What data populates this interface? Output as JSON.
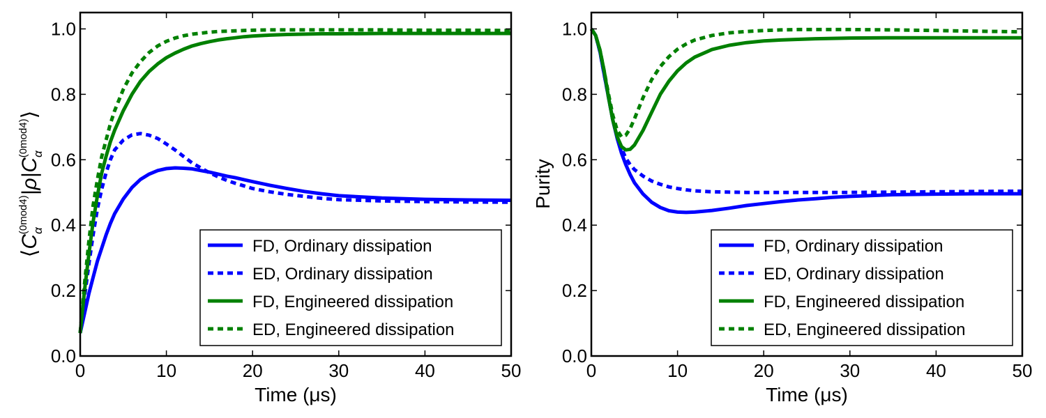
{
  "colors": {
    "blue": "#0000ff",
    "green": "#008000",
    "axis": "#000000",
    "background": "#ffffff"
  },
  "chart_data": [
    {
      "type": "line",
      "title": "",
      "xlabel": "Time (μs)",
      "ylabel_math": {
        "open": "⟨",
        "sym": "C",
        "sub": "α",
        "sup": "(0mod4)",
        "bar_rho": "|ρ|",
        "close": "⟩"
      },
      "xlim": [
        0,
        50
      ],
      "ylim": [
        0.0,
        1.05
      ],
      "xticks": [
        0,
        10,
        20,
        30,
        40,
        50
      ],
      "xtick_labels": [
        "0",
        "10",
        "20",
        "30",
        "40",
        "50"
      ],
      "yticks": [
        0.0,
        0.2,
        0.4,
        0.6,
        0.8,
        1.0
      ],
      "ytick_labels": [
        "0.0",
        "0.2",
        "0.4",
        "0.6",
        "0.8",
        "1.0"
      ],
      "grid": false,
      "legend_position": "lower-right",
      "x": [
        0,
        0.5,
        1,
        1.5,
        2,
        2.5,
        3,
        3.5,
        4,
        5,
        6,
        7,
        8,
        9,
        10,
        11,
        12,
        13,
        14,
        15,
        16,
        17,
        18,
        19,
        20,
        22,
        24,
        26,
        28,
        30,
        35,
        40,
        45,
        50
      ],
      "series": [
        {
          "name": "FD, Ordinary dissipation",
          "color": "blue",
          "style": "solid",
          "values": [
            0.07,
            0.13,
            0.19,
            0.24,
            0.29,
            0.33,
            0.37,
            0.405,
            0.435,
            0.48,
            0.515,
            0.54,
            0.556,
            0.567,
            0.573,
            0.575,
            0.574,
            0.572,
            0.567,
            0.562,
            0.556,
            0.55,
            0.545,
            0.539,
            0.533,
            0.522,
            0.512,
            0.503,
            0.496,
            0.49,
            0.483,
            0.479,
            0.477,
            0.476
          ]
        },
        {
          "name": "ED, Ordinary dissipation",
          "color": "blue",
          "style": "dotted",
          "values": [
            0.07,
            0.18,
            0.28,
            0.37,
            0.45,
            0.51,
            0.56,
            0.6,
            0.63,
            0.66,
            0.676,
            0.68,
            0.675,
            0.665,
            0.648,
            0.63,
            0.61,
            0.59,
            0.575,
            0.56,
            0.548,
            0.537,
            0.528,
            0.52,
            0.512,
            0.502,
            0.494,
            0.488,
            0.482,
            0.478,
            0.474,
            0.472,
            0.471,
            0.47
          ]
        },
        {
          "name": "FD, Engineered dissipation",
          "color": "green",
          "style": "solid",
          "values": [
            0.07,
            0.2,
            0.31,
            0.41,
            0.49,
            0.56,
            0.61,
            0.655,
            0.69,
            0.75,
            0.8,
            0.84,
            0.87,
            0.893,
            0.912,
            0.926,
            0.938,
            0.948,
            0.955,
            0.961,
            0.966,
            0.97,
            0.973,
            0.976,
            0.978,
            0.981,
            0.983,
            0.984,
            0.985,
            0.985,
            0.986,
            0.986,
            0.986,
            0.986
          ]
        },
        {
          "name": "ED, Engineered dissipation",
          "color": "green",
          "style": "dotted",
          "values": [
            0.07,
            0.22,
            0.35,
            0.46,
            0.54,
            0.61,
            0.66,
            0.71,
            0.75,
            0.815,
            0.865,
            0.9,
            0.928,
            0.948,
            0.962,
            0.972,
            0.979,
            0.984,
            0.987,
            0.99,
            0.992,
            0.993,
            0.994,
            0.995,
            0.996,
            0.997,
            0.997,
            0.997,
            0.997,
            0.997,
            0.997,
            0.996,
            0.996,
            0.995
          ]
        }
      ]
    },
    {
      "type": "line",
      "title": "",
      "xlabel": "Time (μs)",
      "ylabel": "Purity",
      "xlim": [
        0,
        50
      ],
      "ylim": [
        0.0,
        1.05
      ],
      "xticks": [
        0,
        10,
        20,
        30,
        40,
        50
      ],
      "xtick_labels": [
        "0",
        "10",
        "20",
        "30",
        "40",
        "50"
      ],
      "yticks": [
        0.0,
        0.2,
        0.4,
        0.6,
        0.8,
        1.0
      ],
      "ytick_labels": [
        "0.0",
        "0.2",
        "0.4",
        "0.6",
        "0.8",
        "1.0"
      ],
      "grid": false,
      "legend_position": "lower-right",
      "x": [
        0,
        0.5,
        1,
        1.5,
        2,
        2.5,
        3,
        3.5,
        4,
        4.5,
        5,
        6,
        7,
        8,
        9,
        10,
        11,
        12,
        14,
        16,
        18,
        20,
        22,
        24,
        26,
        28,
        30,
        35,
        40,
        45,
        50
      ],
      "series": [
        {
          "name": "FD, Ordinary dissipation",
          "color": "blue",
          "style": "solid",
          "values": [
            1.0,
            0.98,
            0.93,
            0.86,
            0.79,
            0.72,
            0.665,
            0.62,
            0.585,
            0.555,
            0.53,
            0.495,
            0.47,
            0.454,
            0.444,
            0.44,
            0.439,
            0.44,
            0.445,
            0.452,
            0.46,
            0.466,
            0.472,
            0.477,
            0.481,
            0.485,
            0.488,
            0.493,
            0.495,
            0.496,
            0.496
          ]
        },
        {
          "name": "ED, Ordinary dissipation",
          "color": "blue",
          "style": "dotted",
          "values": [
            1.0,
            0.98,
            0.93,
            0.86,
            0.79,
            0.72,
            0.67,
            0.635,
            0.605,
            0.585,
            0.57,
            0.55,
            0.535,
            0.525,
            0.517,
            0.512,
            0.508,
            0.505,
            0.502,
            0.501,
            0.5,
            0.5,
            0.5,
            0.5,
            0.5,
            0.5,
            0.5,
            0.501,
            0.502,
            0.503,
            0.504
          ]
        },
        {
          "name": "FD, Engineered dissipation",
          "color": "green",
          "style": "solid",
          "values": [
            1.0,
            0.98,
            0.935,
            0.87,
            0.79,
            0.72,
            0.67,
            0.64,
            0.63,
            0.632,
            0.645,
            0.69,
            0.745,
            0.8,
            0.84,
            0.872,
            0.896,
            0.914,
            0.937,
            0.95,
            0.958,
            0.963,
            0.966,
            0.968,
            0.97,
            0.971,
            0.972,
            0.973,
            0.973,
            0.973,
            0.973
          ]
        },
        {
          "name": "ED, Engineered dissipation",
          "color": "green",
          "style": "dotted",
          "values": [
            1.0,
            0.98,
            0.935,
            0.87,
            0.8,
            0.735,
            0.69,
            0.67,
            0.675,
            0.695,
            0.725,
            0.79,
            0.845,
            0.885,
            0.915,
            0.938,
            0.954,
            0.966,
            0.98,
            0.988,
            0.992,
            0.995,
            0.997,
            0.998,
            0.998,
            0.998,
            0.998,
            0.997,
            0.995,
            0.993,
            0.991
          ]
        }
      ]
    }
  ]
}
